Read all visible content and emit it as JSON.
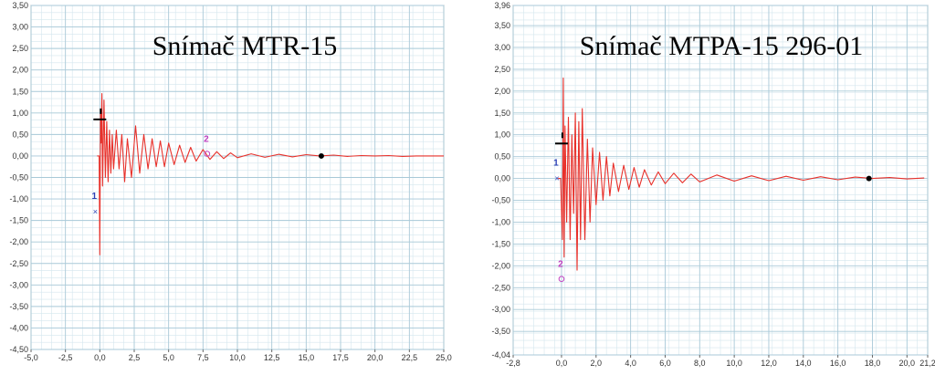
{
  "chart_data": [
    {
      "type": "line",
      "title": "Snímač MTR-15",
      "xlim": [
        -5.0,
        25.0
      ],
      "ylim": [
        -4.5,
        3.5
      ],
      "x_ticks": [
        -5.0,
        -2.5,
        0.0,
        2.5,
        5.0,
        7.5,
        10.0,
        12.5,
        15.0,
        17.5,
        20.0,
        22.5,
        25.0
      ],
      "x_tick_labels": [
        "-5,0",
        "-2,5",
        "0,0",
        "2,5",
        "5,0",
        "7,5",
        "10,0",
        "12,5",
        "15,0",
        "17,5",
        "20,0",
        "22,5",
        "25,0"
      ],
      "y_ticks": [
        -4.5,
        -4.0,
        -3.5,
        -3.0,
        -2.5,
        -2.0,
        -1.5,
        -1.0,
        -0.5,
        0.0,
        0.5,
        1.0,
        1.5,
        2.0,
        2.5,
        3.0,
        3.5
      ],
      "y_tick_labels": [
        "-4,50",
        "-4,00",
        "-3,50",
        "-3,00",
        "-2,50",
        "-2,00",
        "-1,50",
        "-1,00",
        "-0,50",
        "0,00",
        "0,50",
        "1,00",
        "1,50",
        "2,00",
        "2,50",
        "3,00",
        "3,50"
      ],
      "grid": true,
      "series": [
        {
          "color": "#e8302a",
          "x": [
            -0.2,
            -0.05,
            0.0,
            0.05,
            0.1,
            0.15,
            0.2,
            0.3,
            0.4,
            0.5,
            0.6,
            0.7,
            0.8,
            0.9,
            1.0,
            1.2,
            1.4,
            1.6,
            1.8,
            2.0,
            2.3,
            2.6,
            2.9,
            3.2,
            3.5,
            3.8,
            4.1,
            4.4,
            4.7,
            5.0,
            5.4,
            5.8,
            6.2,
            6.6,
            7.0,
            7.5,
            8.0,
            8.5,
            9.0,
            9.5,
            10.0,
            11.0,
            12.0,
            13.0,
            14.0,
            15.0,
            16.0,
            17.0,
            18.0,
            19.0,
            20.0,
            21.0,
            22.0,
            23.0,
            24.0,
            25.0
          ],
          "y": [
            0.0,
            0.0,
            -2.3,
            1.05,
            0.3,
            1.45,
            -0.7,
            1.3,
            -0.5,
            0.8,
            -0.6,
            0.6,
            -0.4,
            0.5,
            -0.3,
            0.6,
            -0.3,
            0.5,
            -0.6,
            0.4,
            -0.5,
            0.7,
            -0.4,
            0.5,
            -0.3,
            0.4,
            -0.25,
            0.35,
            -0.25,
            0.3,
            -0.2,
            0.25,
            -0.15,
            0.2,
            -0.12,
            0.15,
            -0.08,
            0.1,
            -0.06,
            0.07,
            -0.04,
            0.05,
            -0.03,
            0.04,
            -0.02,
            0.03,
            0.0,
            0.02,
            -0.01,
            0.01,
            0.0,
            0.01,
            -0.01,
            0.0,
            0.0,
            0.0
          ]
        }
      ],
      "markers": [
        {
          "label": "1",
          "x": 0.0,
          "y": -1.3,
          "color": "#2b3fb5"
        },
        {
          "label": "2",
          "x": 7.8,
          "y": 0.05,
          "color": "#c040c0"
        }
      ],
      "end_point": {
        "x": 16.1,
        "y": 0.0
      }
    },
    {
      "type": "line",
      "title": "Snímač MTPA-15 296-01",
      "xlim": [
        -2.8,
        21.2
      ],
      "ylim": [
        -4.04,
        3.96
      ],
      "x_ticks": [
        -2.8,
        0.0,
        2.0,
        4.0,
        6.0,
        8.0,
        10.0,
        12.0,
        14.0,
        16.0,
        18.0,
        20.0,
        21.2
      ],
      "x_tick_labels": [
        "-2,8",
        "0,0",
        "2,0",
        "4,0",
        "6,0",
        "8,0",
        "10,0",
        "12,0",
        "14,0",
        "16,0",
        "18,0",
        "20,0",
        "21,2"
      ],
      "y_ticks": [
        -4.04,
        -3.5,
        -3.0,
        -2.5,
        -2.0,
        -1.5,
        -1.0,
        -0.5,
        0.0,
        0.5,
        1.0,
        1.5,
        2.0,
        2.5,
        3.0,
        3.5,
        3.96
      ],
      "y_tick_labels": [
        "-4,04",
        "-3,50",
        "-3,00",
        "-2,50",
        "-2,00",
        "-1,50",
        "-1,00",
        "-0,50",
        "0,00",
        "0,50",
        "1,00",
        "1,50",
        "2,00",
        "2,50",
        "3,00",
        "3,50",
        "3,96"
      ],
      "grid": true,
      "series": [
        {
          "color": "#e8302a",
          "x": [
            -0.2,
            -0.05,
            0.05,
            0.1,
            0.15,
            0.2,
            0.3,
            0.4,
            0.5,
            0.6,
            0.7,
            0.8,
            0.9,
            1.0,
            1.1,
            1.2,
            1.35,
            1.5,
            1.65,
            1.8,
            2.0,
            2.2,
            2.4,
            2.6,
            2.8,
            3.0,
            3.3,
            3.6,
            3.9,
            4.2,
            4.5,
            4.8,
            5.2,
            5.6,
            6.0,
            6.5,
            7.0,
            7.5,
            8.0,
            9.0,
            10.0,
            11.0,
            12.0,
            13.0,
            14.0,
            15.0,
            16.0,
            17.0,
            18.0,
            19.0,
            20.0,
            21.0
          ],
          "y": [
            0.0,
            0.0,
            -1.4,
            2.3,
            -1.8,
            1.2,
            -1.0,
            1.4,
            -1.4,
            1.0,
            -0.8,
            1.5,
            -2.1,
            1.3,
            -1.4,
            1.6,
            -1.4,
            0.9,
            -1.0,
            0.7,
            -0.6,
            0.6,
            -0.5,
            0.5,
            -0.4,
            0.35,
            -0.3,
            0.3,
            -0.25,
            0.25,
            -0.2,
            0.2,
            -0.15,
            0.15,
            -0.12,
            0.12,
            -0.1,
            0.1,
            -0.08,
            0.08,
            -0.06,
            0.06,
            -0.05,
            0.05,
            -0.04,
            0.04,
            -0.03,
            0.03,
            0.0,
            0.02,
            -0.01,
            0.01
          ]
        }
      ],
      "markers": [
        {
          "label": "1",
          "x": 0.0,
          "y": 0.0,
          "color": "#2b3fb5"
        },
        {
          "label": "2",
          "x": 0.0,
          "y": -2.3,
          "color": "#c040c0"
        }
      ],
      "end_point": {
        "x": 17.8,
        "y": 0.0
      }
    }
  ]
}
